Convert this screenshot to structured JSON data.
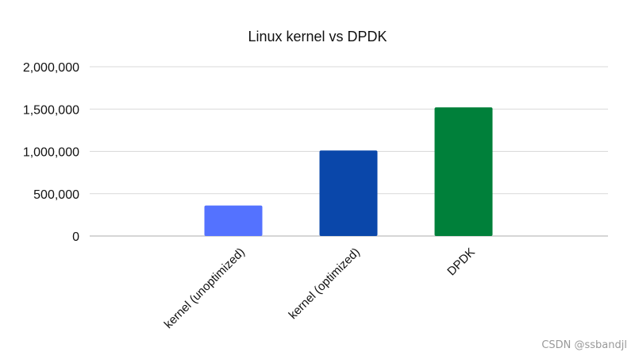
{
  "chart_data": {
    "type": "bar",
    "title": "Linux kernel vs DPDK",
    "categories": [
      "kernel (unoptimized)",
      "kernel (optimized)",
      "DPDK"
    ],
    "series": [
      {
        "values": [
          360000,
          1010000,
          1520000
        ],
        "colors": [
          "#5472ff",
          "#0a47aa",
          "#00803a"
        ]
      }
    ],
    "ylim": [
      0,
      2000000
    ],
    "yticks": [
      0,
      500000,
      1000000,
      1500000,
      2000000
    ],
    "ytick_labels": [
      "0",
      "500,000",
      "1,000,000",
      "1,500,000",
      "2,000,000"
    ],
    "grid": true,
    "legend": "none",
    "xlabel": "",
    "ylabel": ""
  },
  "watermark": "CSDN @ssbandjl"
}
